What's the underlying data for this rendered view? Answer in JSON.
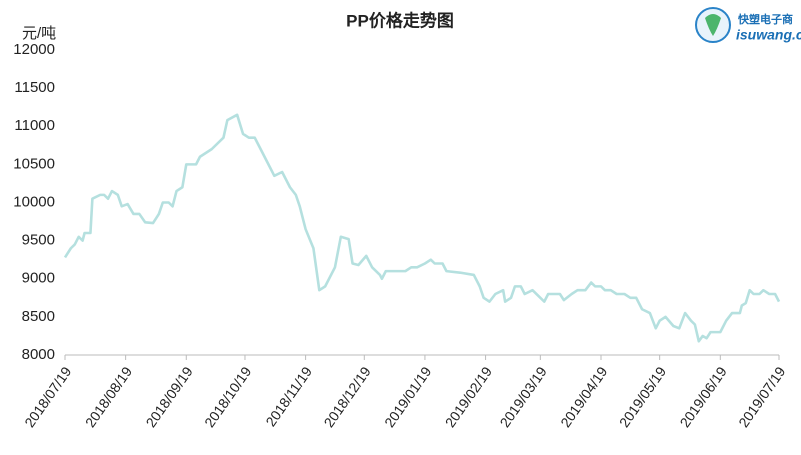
{
  "chart_data": {
    "type": "line",
    "title": "PP价格走势图",
    "y_label": "元/吨",
    "logo": {
      "name": "快塑电子商",
      "url": "isuwang.co"
    },
    "x": [
      "2018/07/19",
      "2018/07/22",
      "2018/07/24",
      "2018/07/26",
      "2018/07/28",
      "2018/07/29",
      "2018/08/01",
      "2018/08/02",
      "2018/08/06",
      "2018/08/08",
      "2018/08/10",
      "2018/08/12",
      "2018/08/15",
      "2018/08/17",
      "2018/08/20",
      "2018/08/23",
      "2018/08/26",
      "2018/08/29",
      "2018/09/02",
      "2018/09/05",
      "2018/09/07",
      "2018/09/10",
      "2018/09/12",
      "2018/09/14",
      "2018/09/17",
      "2018/09/19",
      "2018/09/24",
      "2018/09/26",
      "2018/10/02",
      "2018/10/08",
      "2018/10/10",
      "2018/10/15",
      "2018/10/18",
      "2018/10/21",
      "2018/10/24",
      "2018/10/27",
      "2018/10/31",
      "2018/11/03",
      "2018/11/07",
      "2018/11/11",
      "2018/11/14",
      "2018/11/16",
      "2018/11/19",
      "2018/11/23",
      "2018/11/26",
      "2018/11/29",
      "2018/12/04",
      "2018/12/07",
      "2018/12/11",
      "2018/12/13",
      "2018/12/16",
      "2018/12/20",
      "2018/12/23",
      "2018/12/27",
      "2018/12/28",
      "2018/12/30",
      "2019/01/05",
      "2019/01/09",
      "2019/01/12",
      "2019/01/15",
      "2019/01/19",
      "2019/01/22",
      "2019/01/24",
      "2019/01/28",
      "2019/01/30",
      "2019/02/06",
      "2019/02/13",
      "2019/02/16",
      "2019/02/18",
      "2019/02/21",
      "2019/02/24",
      "2019/02/28",
      "2019/03/01",
      "2019/03/04",
      "2019/03/06",
      "2019/03/09",
      "2019/03/11",
      "2019/03/15",
      "2019/03/19",
      "2019/03/21",
      "2019/03/23",
      "2019/03/29",
      "2019/03/31",
      "2019/04/04",
      "2019/04/07",
      "2019/04/11",
      "2019/04/14",
      "2019/04/16",
      "2019/04/19",
      "2019/04/21",
      "2019/04/24",
      "2019/04/27",
      "2019/05/01",
      "2019/05/04",
      "2019/05/07",
      "2019/05/10",
      "2019/05/14",
      "2019/05/17",
      "2019/05/19",
      "2019/05/22",
      "2019/05/26",
      "2019/05/29",
      "2019/06/01",
      "2019/06/04",
      "2019/06/06",
      "2019/06/08",
      "2019/06/10",
      "2019/06/12",
      "2019/06/14",
      "2019/06/19",
      "2019/06/22",
      "2019/06/25",
      "2019/06/29",
      "2019/06/30",
      "2019/07/02",
      "2019/07/04",
      "2019/07/06",
      "2019/07/09",
      "2019/07/11",
      "2019/07/14",
      "2019/07/17",
      "2019/07/19"
    ],
    "series": [
      {
        "color": "#b5e0df",
        "values": [
          9280,
          9400,
          9450,
          9550,
          9500,
          9600,
          9600,
          10050,
          10100,
          10100,
          10050,
          10150,
          10100,
          9950,
          9980,
          9850,
          9850,
          9740,
          9730,
          9850,
          10000,
          10000,
          9950,
          10150,
          10200,
          10500,
          10500,
          10600,
          10700,
          10850,
          11080,
          11150,
          10900,
          10850,
          10850,
          10700,
          10500,
          10350,
          10400,
          10200,
          10100,
          9950,
          9650,
          9400,
          8850,
          8900,
          9150,
          9550,
          9520,
          9200,
          9180,
          9300,
          9150,
          9050,
          9000,
          9100,
          9100,
          9100,
          9150,
          9150,
          9200,
          9250,
          9200,
          9200,
          9100,
          9080,
          9050,
          8900,
          8750,
          8700,
          8800,
          8850,
          8700,
          8750,
          8900,
          8900,
          8800,
          8850,
          8750,
          8700,
          8800,
          8800,
          8720,
          8800,
          8850,
          8850,
          8950,
          8900,
          8900,
          8850,
          8850,
          8800,
          8800,
          8750,
          8750,
          8600,
          8550,
          8350,
          8450,
          8500,
          8380,
          8350,
          8550,
          8450,
          8400,
          8180,
          8250,
          8220,
          8300,
          8300,
          8450,
          8550,
          8550,
          8650,
          8680,
          8850,
          8800,
          8800,
          8850,
          8800,
          8800,
          8700
        ]
      }
    ],
    "xlim": [
      "2018/07/19",
      "2019/07/19"
    ],
    "xticks": [
      "2018/07/19",
      "2018/08/19",
      "2018/09/19",
      "2018/10/19",
      "2018/11/19",
      "2018/12/19",
      "2019/01/19",
      "2019/02/19",
      "2019/03/19",
      "2019/04/19",
      "2019/05/19",
      "2019/06/19",
      "2019/07/19"
    ],
    "ylim": [
      8000,
      12000
    ],
    "yticks": [
      8000,
      8500,
      9000,
      9500,
      10000,
      10500,
      11000,
      11500,
      12000
    ],
    "grid": false
  }
}
